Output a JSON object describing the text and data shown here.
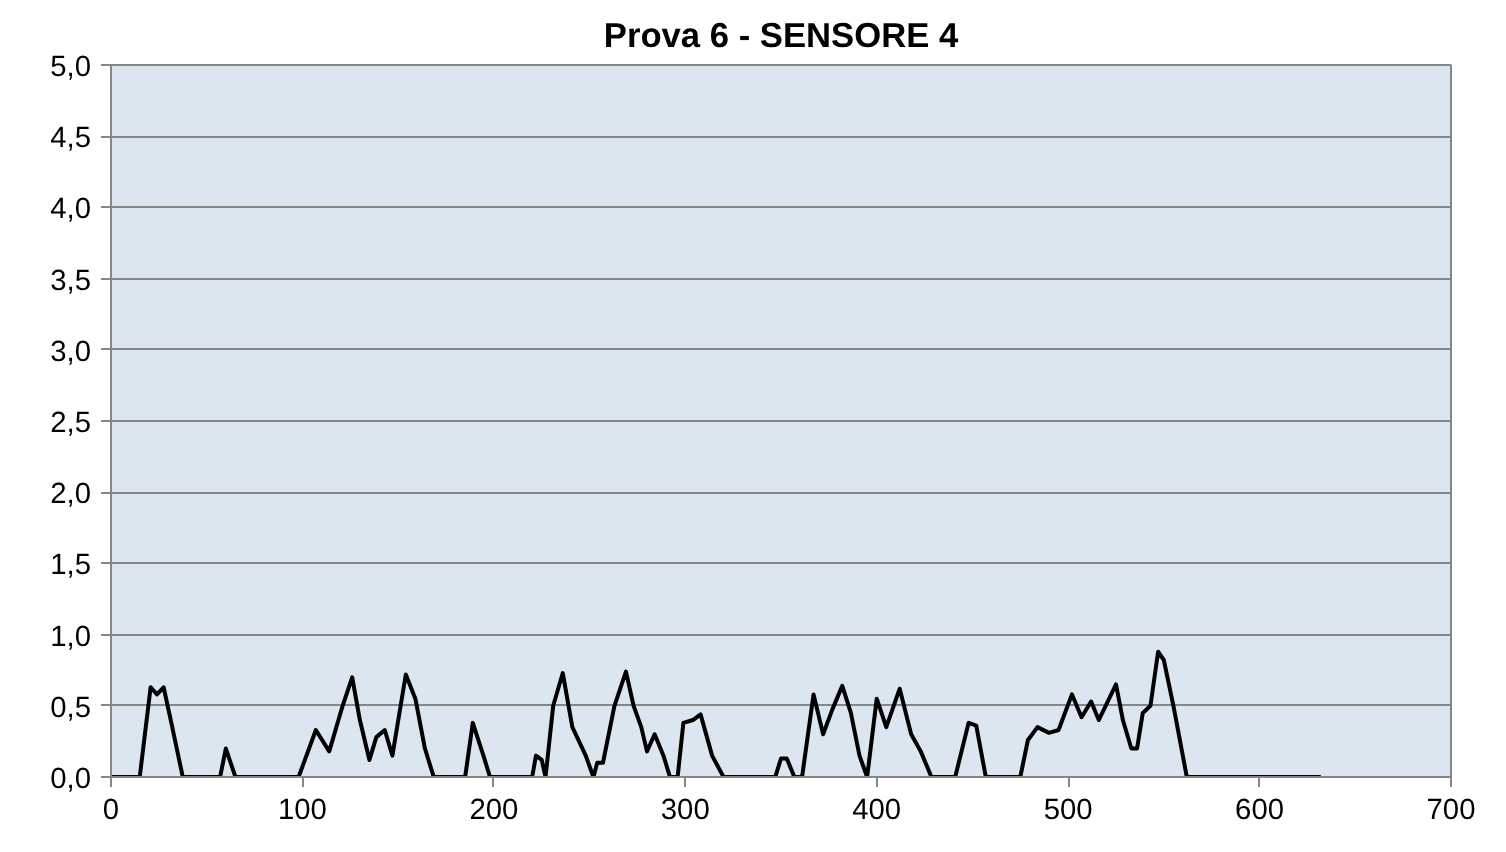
{
  "chart_data": {
    "type": "line",
    "title": "Prova 6 - SENSORE 4",
    "series": [
      {
        "color": "#000000",
        "x": [
          0,
          15,
          20.7,
          24,
          27.5,
          32,
          37.5,
          57,
          60,
          65,
          98,
          107,
          114,
          121,
          126,
          130,
          135,
          138.6,
          143,
          147,
          154,
          159,
          164,
          168.6,
          185,
          189,
          195,
          198,
          220,
          222,
          225,
          227,
          231,
          236,
          241,
          248,
          252,
          254,
          257,
          263,
          269,
          273,
          277,
          280,
          284,
          288.6,
          292,
          296,
          299,
          304,
          308,
          314,
          320,
          347,
          350,
          353,
          357,
          361,
          367,
          372,
          377,
          382,
          386.5,
          391,
          395,
          400,
          405,
          412,
          418,
          423,
          428.6,
          441,
          448,
          452,
          457,
          475,
          479,
          484,
          490,
          495,
          502,
          507,
          512,
          516,
          525,
          528.6,
          533,
          536,
          539,
          543,
          547,
          550,
          555,
          562,
          632
        ],
        "values": [
          0,
          0,
          0.63,
          0.58,
          0.63,
          0.35,
          0,
          0,
          0.2,
          0,
          0,
          0.33,
          0.18,
          0.5,
          0.7,
          0.4,
          0.12,
          0.28,
          0.33,
          0.15,
          0.72,
          0.55,
          0.2,
          0,
          0,
          0.38,
          0.13,
          0,
          0,
          0.15,
          0.12,
          0,
          0.5,
          0.73,
          0.35,
          0.15,
          0,
          0.1,
          0.1,
          0.5,
          0.74,
          0.5,
          0.35,
          0.18,
          0.3,
          0.15,
          0,
          0,
          0.38,
          0.4,
          0.44,
          0.15,
          0,
          0,
          0.13,
          0.13,
          0,
          0,
          0.58,
          0.3,
          0.48,
          0.64,
          0.45,
          0.15,
          0,
          0.55,
          0.35,
          0.62,
          0.3,
          0.18,
          0,
          0,
          0.38,
          0.36,
          0,
          0,
          0.26,
          0.35,
          0.31,
          0.33,
          0.58,
          0.42,
          0.53,
          0.4,
          0.65,
          0.4,
          0.2,
          0.2,
          0.45,
          0.5,
          0.88,
          0.82,
          0.5,
          0,
          0
        ]
      }
    ],
    "xlim": [
      0,
      700
    ],
    "xticks": [
      0,
      100,
      200,
      300,
      400,
      500,
      600,
      700
    ],
    "ylim": [
      0,
      5
    ],
    "yticks": [
      {
        "value": 0,
        "label": "0,0"
      },
      {
        "value": 0.5,
        "label": "0,5"
      },
      {
        "value": 1,
        "label": "1,0"
      },
      {
        "value": 1.5,
        "label": "1,5"
      },
      {
        "value": 2,
        "label": "2,0"
      },
      {
        "value": 2.5,
        "label": "2,5"
      },
      {
        "value": 3,
        "label": "3,0"
      },
      {
        "value": 3.5,
        "label": "3,5"
      },
      {
        "value": 4,
        "label": "4,0"
      },
      {
        "value": 4.5,
        "label": "4,5"
      },
      {
        "value": 5,
        "label": "5,0"
      }
    ],
    "grid": "y",
    "marker": "none",
    "line_style": "solid"
  }
}
